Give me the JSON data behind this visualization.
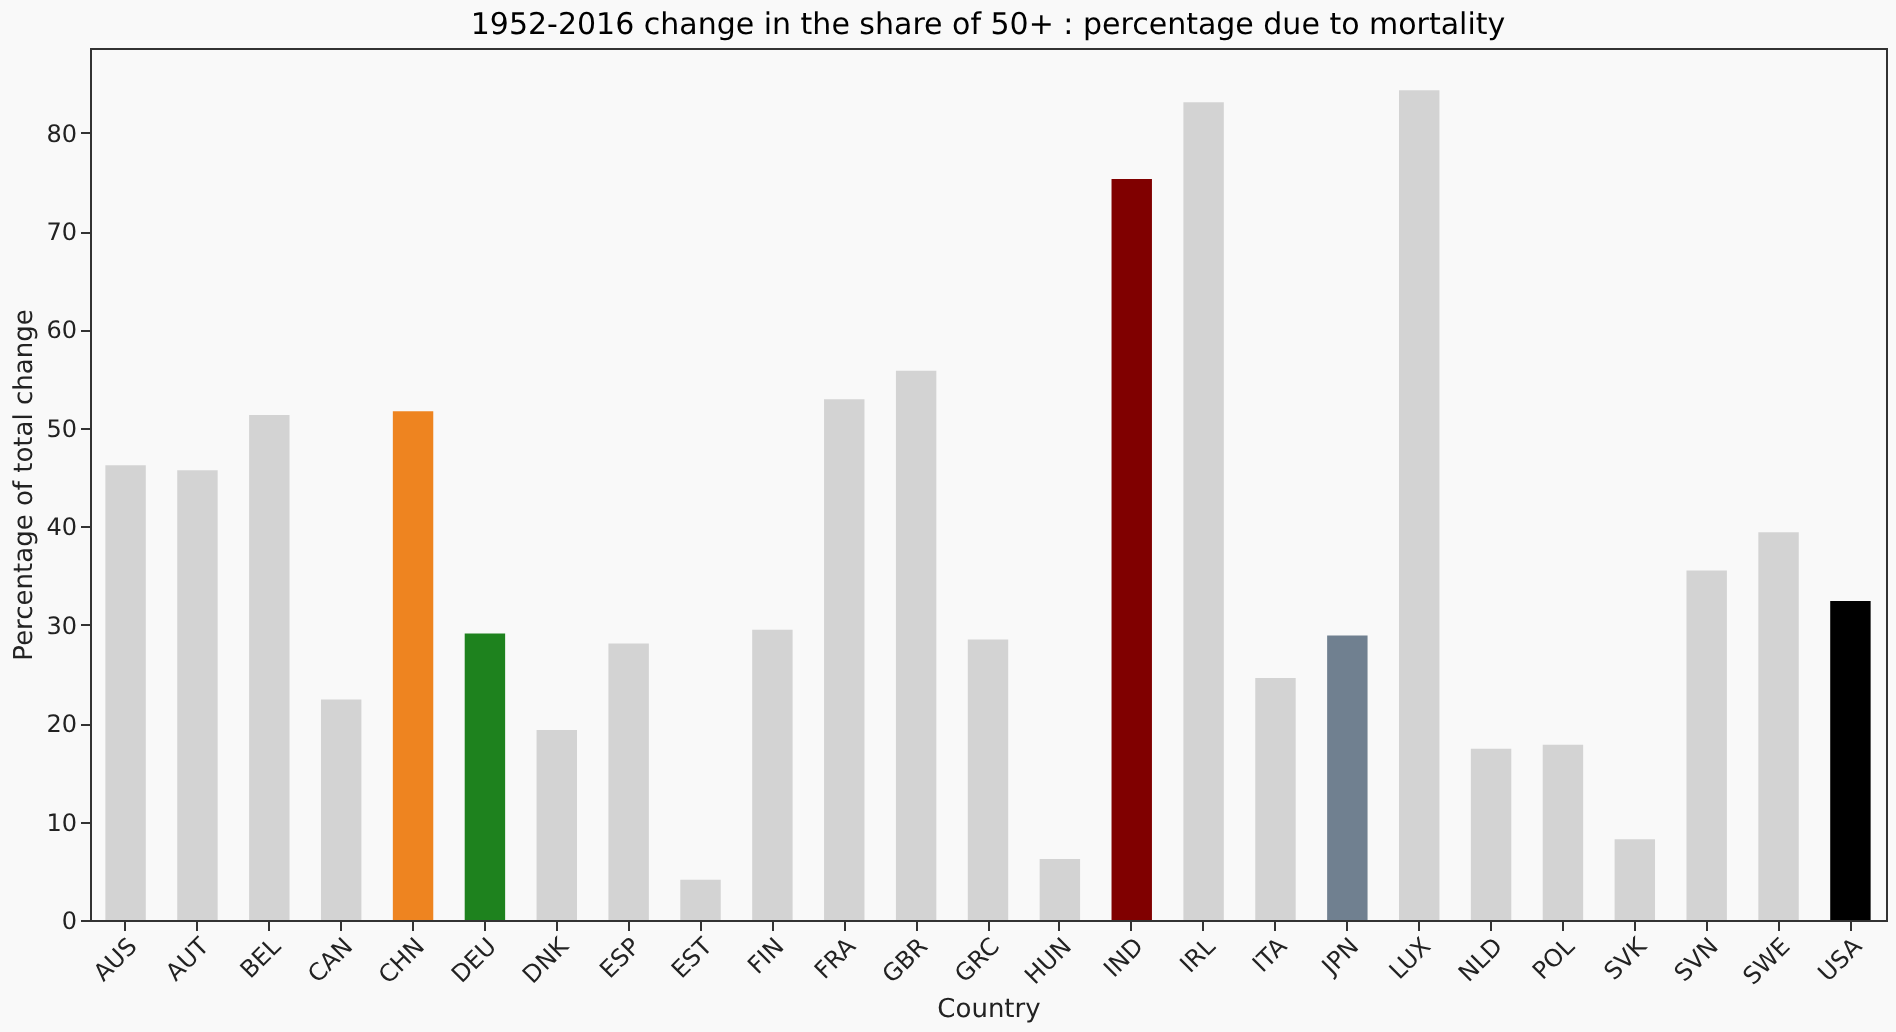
{
  "chart_data": {
    "type": "bar",
    "title": "1952-2016 change in the share of 50+ : percentage due to mortality",
    "xlabel": "Country",
    "ylabel": "Percentage of total change",
    "categories": [
      "AUS",
      "AUT",
      "BEL",
      "CAN",
      "CHN",
      "DEU",
      "DNK",
      "ESP",
      "EST",
      "FIN",
      "FRA",
      "GBR",
      "GRC",
      "HUN",
      "IND",
      "IRL",
      "ITA",
      "JPN",
      "LUX",
      "NLD",
      "POL",
      "SVK",
      "SVN",
      "SWE",
      "USA"
    ],
    "values": [
      46.2,
      45.7,
      51.3,
      22.4,
      51.7,
      29.1,
      19.3,
      28.1,
      4.1,
      29.5,
      52.9,
      55.8,
      28.5,
      6.2,
      75.3,
      83.1,
      24.6,
      28.9,
      84.3,
      17.4,
      17.8,
      8.2,
      35.5,
      39.4,
      32.4
    ],
    "colors": [
      "#d3d3d3",
      "#d3d3d3",
      "#d3d3d3",
      "#d3d3d3",
      "#ee8420",
      "#1e821e",
      "#d3d3d3",
      "#d3d3d3",
      "#d3d3d3",
      "#d3d3d3",
      "#d3d3d3",
      "#d3d3d3",
      "#d3d3d3",
      "#d3d3d3",
      "#800000",
      "#d3d3d3",
      "#d3d3d3",
      "#708090",
      "#d3d3d3",
      "#d3d3d3",
      "#d3d3d3",
      "#d3d3d3",
      "#d3d3d3",
      "#d3d3d3",
      "#000000"
    ],
    "ylim": [
      0,
      88.6
    ],
    "yticks": [
      0,
      10,
      20,
      30,
      40,
      50,
      60,
      70,
      80
    ],
    "grid": false
  }
}
